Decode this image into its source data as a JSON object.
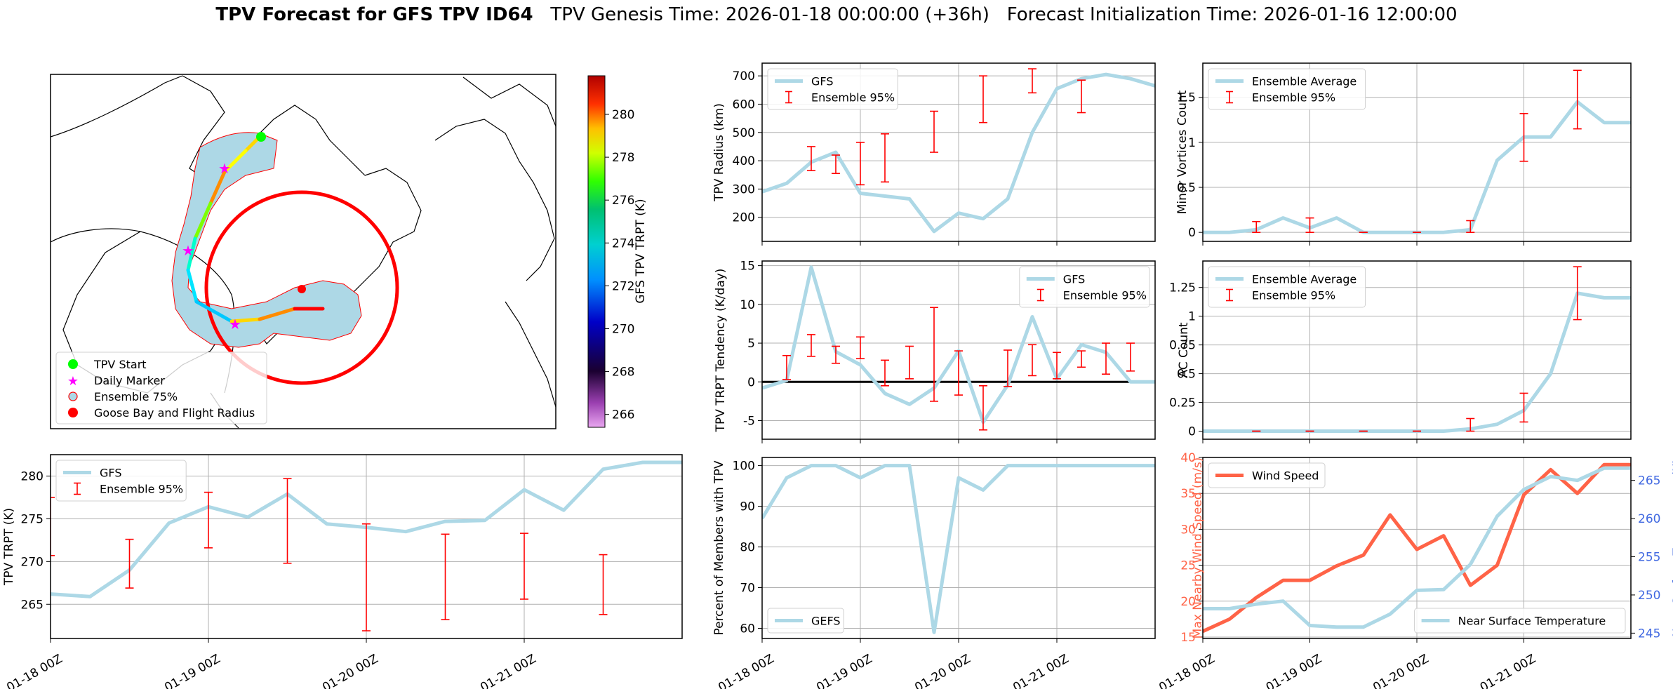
{
  "figure": {
    "title_bold": "TPV Forecast for GFS TPV ID64",
    "title_rest": "   TPV Genesis Time: 2026-01-18 00:00:00 (+36h)   Forecast Initialization Time: 2026-01-16 12:00:00"
  },
  "colors": {
    "gfs_line": "#add8e6",
    "error_bar": "#ff0000",
    "wind_line": "#ff6347",
    "temp_axis": "#4169e1",
    "wind_axis": "#ff6347",
    "map_fill": "#add8e6",
    "radius_circle": "#ff0000",
    "start_marker": "#00ff00",
    "daily_marker": "#ff00ff"
  },
  "date_ticks": [
    "01-18 00Z",
    "01-19 00Z",
    "01-20 00Z",
    "01-21 00Z"
  ],
  "map": {
    "colorbar": {
      "label": "GFS TPV TRPT (K)",
      "ticks": [
        266,
        268,
        270,
        272,
        274,
        276,
        278,
        280
      ],
      "range": [
        265.4,
        281.8
      ],
      "colormap": "nipy_spectral-like (violet-black-blue-cyan-green-yellow-orange-red)"
    },
    "legend": [
      {
        "label": "TPV Start",
        "marker": "green-circle"
      },
      {
        "label": "Daily Marker",
        "marker": "magenta-star"
      },
      {
        "label": "Ensemble 75%",
        "marker": "blue-circle-red-edge"
      },
      {
        "label": "Goose Bay and Flight Radius",
        "marker": "red-circle"
      }
    ]
  },
  "chart_data": [
    {
      "id": "trpt",
      "type": "line",
      "ylabel": "TPV TRPT (K)",
      "xlabel": "",
      "x_hours": [
        0,
        6,
        12,
        18,
        24,
        30,
        36,
        42,
        48,
        54,
        60,
        66,
        72,
        78,
        84,
        90,
        96
      ],
      "series": [
        {
          "name": "GFS",
          "values": [
            266.2,
            265.9,
            269.0,
            274.5,
            276.4,
            275.2,
            277.9,
            274.4,
            274.0,
            273.5,
            274.7,
            274.8,
            278.4,
            276.0,
            280.8,
            281.6,
            281.6
          ]
        }
      ],
      "errorbars": {
        "name": "Ensemble 95%",
        "x_hours": [
          0,
          12,
          24,
          36,
          48,
          60,
          72,
          84
        ],
        "low": [
          270.7,
          266.9,
          271.6,
          269.8,
          261.9,
          263.2,
          265.6,
          263.8
        ],
        "high": [
          277.5,
          272.6,
          278.1,
          279.7,
          274.4,
          273.2,
          273.3,
          270.8
        ]
      },
      "ylim": [
        261,
        282.5
      ],
      "yticks": [
        265,
        270,
        275,
        280
      ],
      "xlim_hours": [
        0,
        96
      ],
      "legend": [
        "GFS",
        "Ensemble 95%"
      ],
      "legend_loc": "upper-left",
      "grid": true
    },
    {
      "id": "radius",
      "type": "line",
      "ylabel": "TPV Radius (km)",
      "x_hours": [
        0,
        6,
        12,
        18,
        24,
        30,
        36,
        42,
        48,
        54,
        60,
        66,
        72,
        78,
        84,
        90,
        96
      ],
      "series": [
        {
          "name": "GFS",
          "values": [
            290,
            320,
            395,
            430,
            285,
            275,
            265,
            150,
            215,
            195,
            265,
            500,
            655,
            690,
            705,
            690,
            665
          ]
        }
      ],
      "errorbars": {
        "name": "Ensemble 95%",
        "x_hours": [
          0,
          6,
          12,
          18,
          24,
          30,
          36,
          42,
          48,
          54,
          60,
          66,
          72,
          78,
          84,
          90,
          96
        ],
        "low": [
          250,
          0,
          365,
          355,
          315,
          325,
          0,
          430,
          0,
          535,
          0,
          640,
          0,
          570,
          0,
          0,
          0
        ],
        "high": [
          330,
          0,
          450,
          420,
          465,
          495,
          0,
          575,
          0,
          700,
          0,
          725,
          0,
          685,
          0,
          0,
          0
        ],
        "present": [
          0,
          0,
          1,
          1,
          1,
          1,
          0,
          1,
          0,
          1,
          0,
          1,
          0,
          1,
          0,
          0,
          0
        ]
      },
      "ylim": [
        115,
        745
      ],
      "yticks": [
        200,
        300,
        400,
        500,
        600,
        700
      ],
      "xlim_hours": [
        0,
        96
      ],
      "legend": [
        "GFS",
        "Ensemble 95%"
      ],
      "legend_loc": "upper-left",
      "grid": true
    },
    {
      "id": "tendency",
      "type": "line",
      "ylabel": "TPV TRPT Tendency (K/day)",
      "x_hours": [
        0,
        6,
        12,
        18,
        24,
        30,
        36,
        42,
        48,
        54,
        60,
        66,
        72,
        78,
        84,
        90,
        96
      ],
      "series": [
        {
          "name": "GFS",
          "values": [
            -0.8,
            0.2,
            14.8,
            3.9,
            2.2,
            -1.5,
            -2.9,
            -0.8,
            4.0,
            -5.2,
            -0.4,
            8.4,
            0.4,
            4.8,
            3.8,
            0.0,
            0.0
          ]
        }
      ],
      "errorbars": {
        "name": "Ensemble 95%",
        "x_hours": [
          6,
          12,
          18,
          24,
          30,
          36,
          42,
          48,
          54,
          60,
          66,
          72,
          78,
          84,
          90,
          96
        ],
        "low": [
          0.3,
          3.3,
          2.4,
          3.0,
          -0.5,
          0.4,
          -2.5,
          -1.7,
          -6.2,
          -0.6,
          0.8,
          0.4,
          1.9,
          1.0,
          1.4,
          0
        ],
        "high": [
          3.4,
          6.1,
          4.6,
          5.8,
          2.8,
          4.6,
          9.6,
          4.0,
          -0.5,
          4.1,
          4.8,
          3.8,
          4.0,
          5.0,
          5.0,
          0
        ],
        "present": [
          1,
          1,
          1,
          1,
          1,
          1,
          1,
          1,
          1,
          1,
          1,
          1,
          1,
          1,
          1,
          0
        ]
      },
      "ylim": [
        -7.4,
        15.6
      ],
      "yticks": [
        -5,
        0,
        5,
        10,
        15
      ],
      "xlim_hours": [
        0,
        96
      ],
      "zero_line": true,
      "legend": [
        "GFS",
        "Ensemble 95%"
      ],
      "legend_loc": "upper-right",
      "grid": true
    },
    {
      "id": "members",
      "type": "line",
      "ylabel": "Percent of Members with TPV",
      "x_hours": [
        0,
        6,
        12,
        18,
        24,
        30,
        36,
        42,
        48,
        54,
        60,
        66,
        72,
        78,
        84,
        90,
        96
      ],
      "series": [
        {
          "name": "GEFS",
          "values": [
            87,
            97,
            100,
            100,
            97,
            100,
            100,
            59,
            97,
            94,
            100,
            100,
            100,
            100,
            100,
            100,
            100
          ]
        }
      ],
      "ylim": [
        57.5,
        102
      ],
      "yticks": [
        60,
        70,
        80,
        90,
        100
      ],
      "xlim_hours": [
        0,
        96
      ],
      "legend": [
        "GEFS"
      ],
      "legend_loc": "lower-left",
      "grid": true
    },
    {
      "id": "minor",
      "type": "line",
      "ylabel": "Minor Vortices Count",
      "x_hours": [
        0,
        6,
        12,
        18,
        24,
        30,
        36,
        42,
        48,
        54,
        60,
        66,
        72,
        78,
        84,
        90,
        96
      ],
      "series": [
        {
          "name": "Ensemble Average",
          "values": [
            0,
            0,
            0.03,
            0.16,
            0.05,
            0.16,
            0,
            0,
            0,
            0,
            0.03,
            0.8,
            1.06,
            1.06,
            1.45,
            1.22,
            1.22
          ]
        }
      ],
      "errorbars": {
        "name": "Ensemble 95%",
        "x_hours": [
          12,
          24,
          36,
          48,
          60,
          72,
          84
        ],
        "low": [
          0,
          0,
          0,
          0,
          0,
          0.79,
          1.15
        ],
        "high": [
          0.12,
          0.16,
          0,
          0,
          0.13,
          1.32,
          1.8
        ]
      },
      "ylim": [
        -0.1,
        1.88
      ],
      "yticks": [
        0,
        0.5,
        1,
        1.5
      ],
      "xlim_hours": [
        0,
        96
      ],
      "legend": [
        "Ensemble Average",
        "Ensemble 95%"
      ],
      "legend_loc": "upper-left",
      "grid": true
    },
    {
      "id": "ac",
      "type": "line",
      "ylabel": "AC Count",
      "x_hours": [
        0,
        6,
        12,
        18,
        24,
        30,
        36,
        42,
        48,
        54,
        60,
        66,
        72,
        78,
        84,
        90,
        96
      ],
      "series": [
        {
          "name": "Ensemble Average",
          "values": [
            0,
            0,
            0,
            0,
            0,
            0,
            0,
            0,
            0,
            0,
            0.02,
            0.06,
            0.18,
            0.5,
            1.2,
            1.16,
            1.16
          ]
        }
      ],
      "errorbars": {
        "name": "Ensemble 95%",
        "x_hours": [
          12,
          24,
          36,
          48,
          60,
          72,
          84
        ],
        "low": [
          0,
          0,
          0,
          0,
          0,
          0.08,
          0.97
        ],
        "high": [
          0,
          0,
          0,
          0,
          0.11,
          0.33,
          1.43
        ]
      },
      "ylim": [
        -0.07,
        1.48
      ],
      "yticks": [
        0,
        0.25,
        0.5,
        0.75,
        1,
        1.25
      ],
      "xlim_hours": [
        0,
        96
      ],
      "legend": [
        "Ensemble Average",
        "Ensemble 95%"
      ],
      "legend_loc": "upper-left",
      "grid": true
    },
    {
      "id": "wind",
      "type": "line",
      "ylabel": "Max Nearby Wind Speed (m/s)",
      "ylabel_right": "Near Surface Temperature (K)",
      "x_hours": [
        0,
        6,
        12,
        18,
        24,
        30,
        36,
        42,
        48,
        54,
        60,
        66,
        72,
        78,
        84,
        90,
        96
      ],
      "series": [
        {
          "name": "Wind Speed",
          "values": [
            15.8,
            17.5,
            20.5,
            22.9,
            22.9,
            24.9,
            26.4,
            32.0,
            27.2,
            29.1,
            22.2,
            25.0,
            34.8,
            38.3,
            35.0,
            39.0,
            39.0
          ]
        },
        {
          "name": "Near Surface Temperature",
          "axis": "right",
          "values": [
            248.2,
            248.2,
            248.8,
            249.2,
            246.0,
            245.8,
            245.8,
            247.5,
            250.6,
            250.7,
            254.0,
            260.3,
            263.8,
            265.5,
            265.0,
            266.6,
            266.6
          ]
        }
      ],
      "ylim": [
        14.8,
        40
      ],
      "yticks": [
        15,
        20,
        25,
        30,
        35,
        40
      ],
      "ylim_right": [
        244.3,
        268
      ],
      "yticks_right": [
        245,
        250,
        255,
        260,
        265
      ],
      "xlim_hours": [
        0,
        96
      ],
      "legend_left": [
        "Wind Speed"
      ],
      "legend_right": [
        "Near Surface Temperature"
      ],
      "grid": true
    }
  ]
}
